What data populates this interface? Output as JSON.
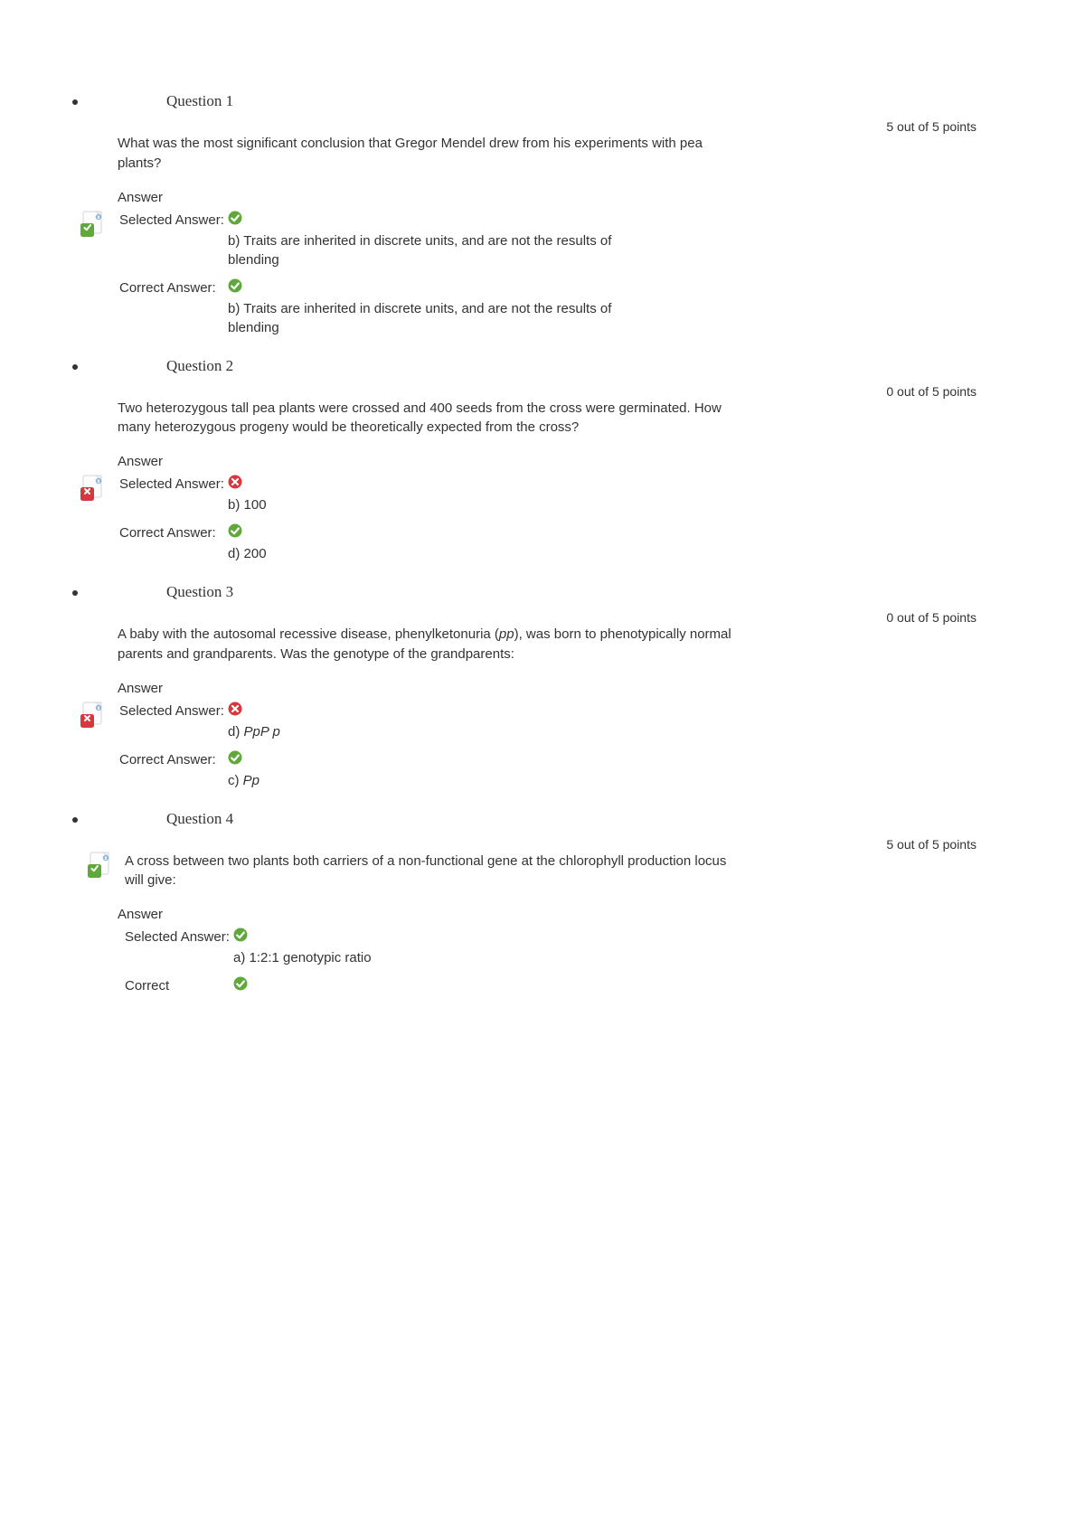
{
  "questions": [
    {
      "title": "Question 1",
      "points": "5 out of 5 points",
      "status": "correct",
      "body_plain": "What was the most significant conclusion that Gregor Mendel drew from his experiments with pea plants?",
      "answer_heading": "Answer",
      "selected_label": "Selected Answer:",
      "correct_label": "Correct Answer:",
      "selected_icon": "check",
      "correct_icon": "check",
      "selected_text": "b) Traits are inherited in discrete units, and are not the results of blending",
      "correct_text": "b) Traits are inherited in discrete units, and are not the results of blending",
      "icon_beside_body": false,
      "icon_beside_answer": true
    },
    {
      "title": "Question 2",
      "points": "0 out of 5 points",
      "status": "incorrect",
      "body_plain": "Two heterozygous tall pea plants were crossed and 400 seeds from the cross were germinated. How many heterozygous progeny would be theoretically expected from the cross?",
      "answer_heading": "Answer",
      "selected_label": "Selected Answer:",
      "correct_label": "Correct Answer:",
      "selected_icon": "cross",
      "correct_icon": "check",
      "selected_text": "b) 100",
      "correct_text": "d) 200",
      "icon_beside_body": false,
      "icon_beside_answer": true
    },
    {
      "title": "Question 3",
      "points": "0 out of 5 points",
      "status": "incorrect",
      "body_html": "A baby with the autosomal recessive disease, phenylketonuria (<span class='italic'>pp</span>), was born to phenotypically normal parents and grandparents. Was the genotype of the grandparents:",
      "answer_heading": "Answer",
      "selected_label": "Selected Answer:",
      "correct_label": "Correct Answer:",
      "selected_icon": "cross",
      "correct_icon": "check",
      "selected_html": "d) <span class='italic'>PpP p</span>",
      "correct_html": "c) <span class='italic'>Pp</span>",
      "icon_beside_body": false,
      "icon_beside_answer": true
    },
    {
      "title": "Question 4",
      "points": "5 out of 5 points",
      "status": "correct",
      "body_plain": "A cross between two plants both carriers of a non-functional gene at the chlorophyll production locus will give:",
      "answer_heading": "Answer",
      "selected_label": "Selected Answer:",
      "correct_label": "Correct",
      "selected_icon": "check",
      "correct_icon": "check",
      "selected_text": "a) 1:2:1 genotypic ratio",
      "correct_text": "",
      "icon_beside_body": true,
      "icon_beside_answer": false
    }
  ],
  "colors": {
    "check_fill": "#5fa83a",
    "cross_fill": "#d9363e",
    "icon_border": "#cfd6dd",
    "icon_bg_top": "#f5f7f9",
    "icon_bg_bot": "#e3e8ed"
  }
}
